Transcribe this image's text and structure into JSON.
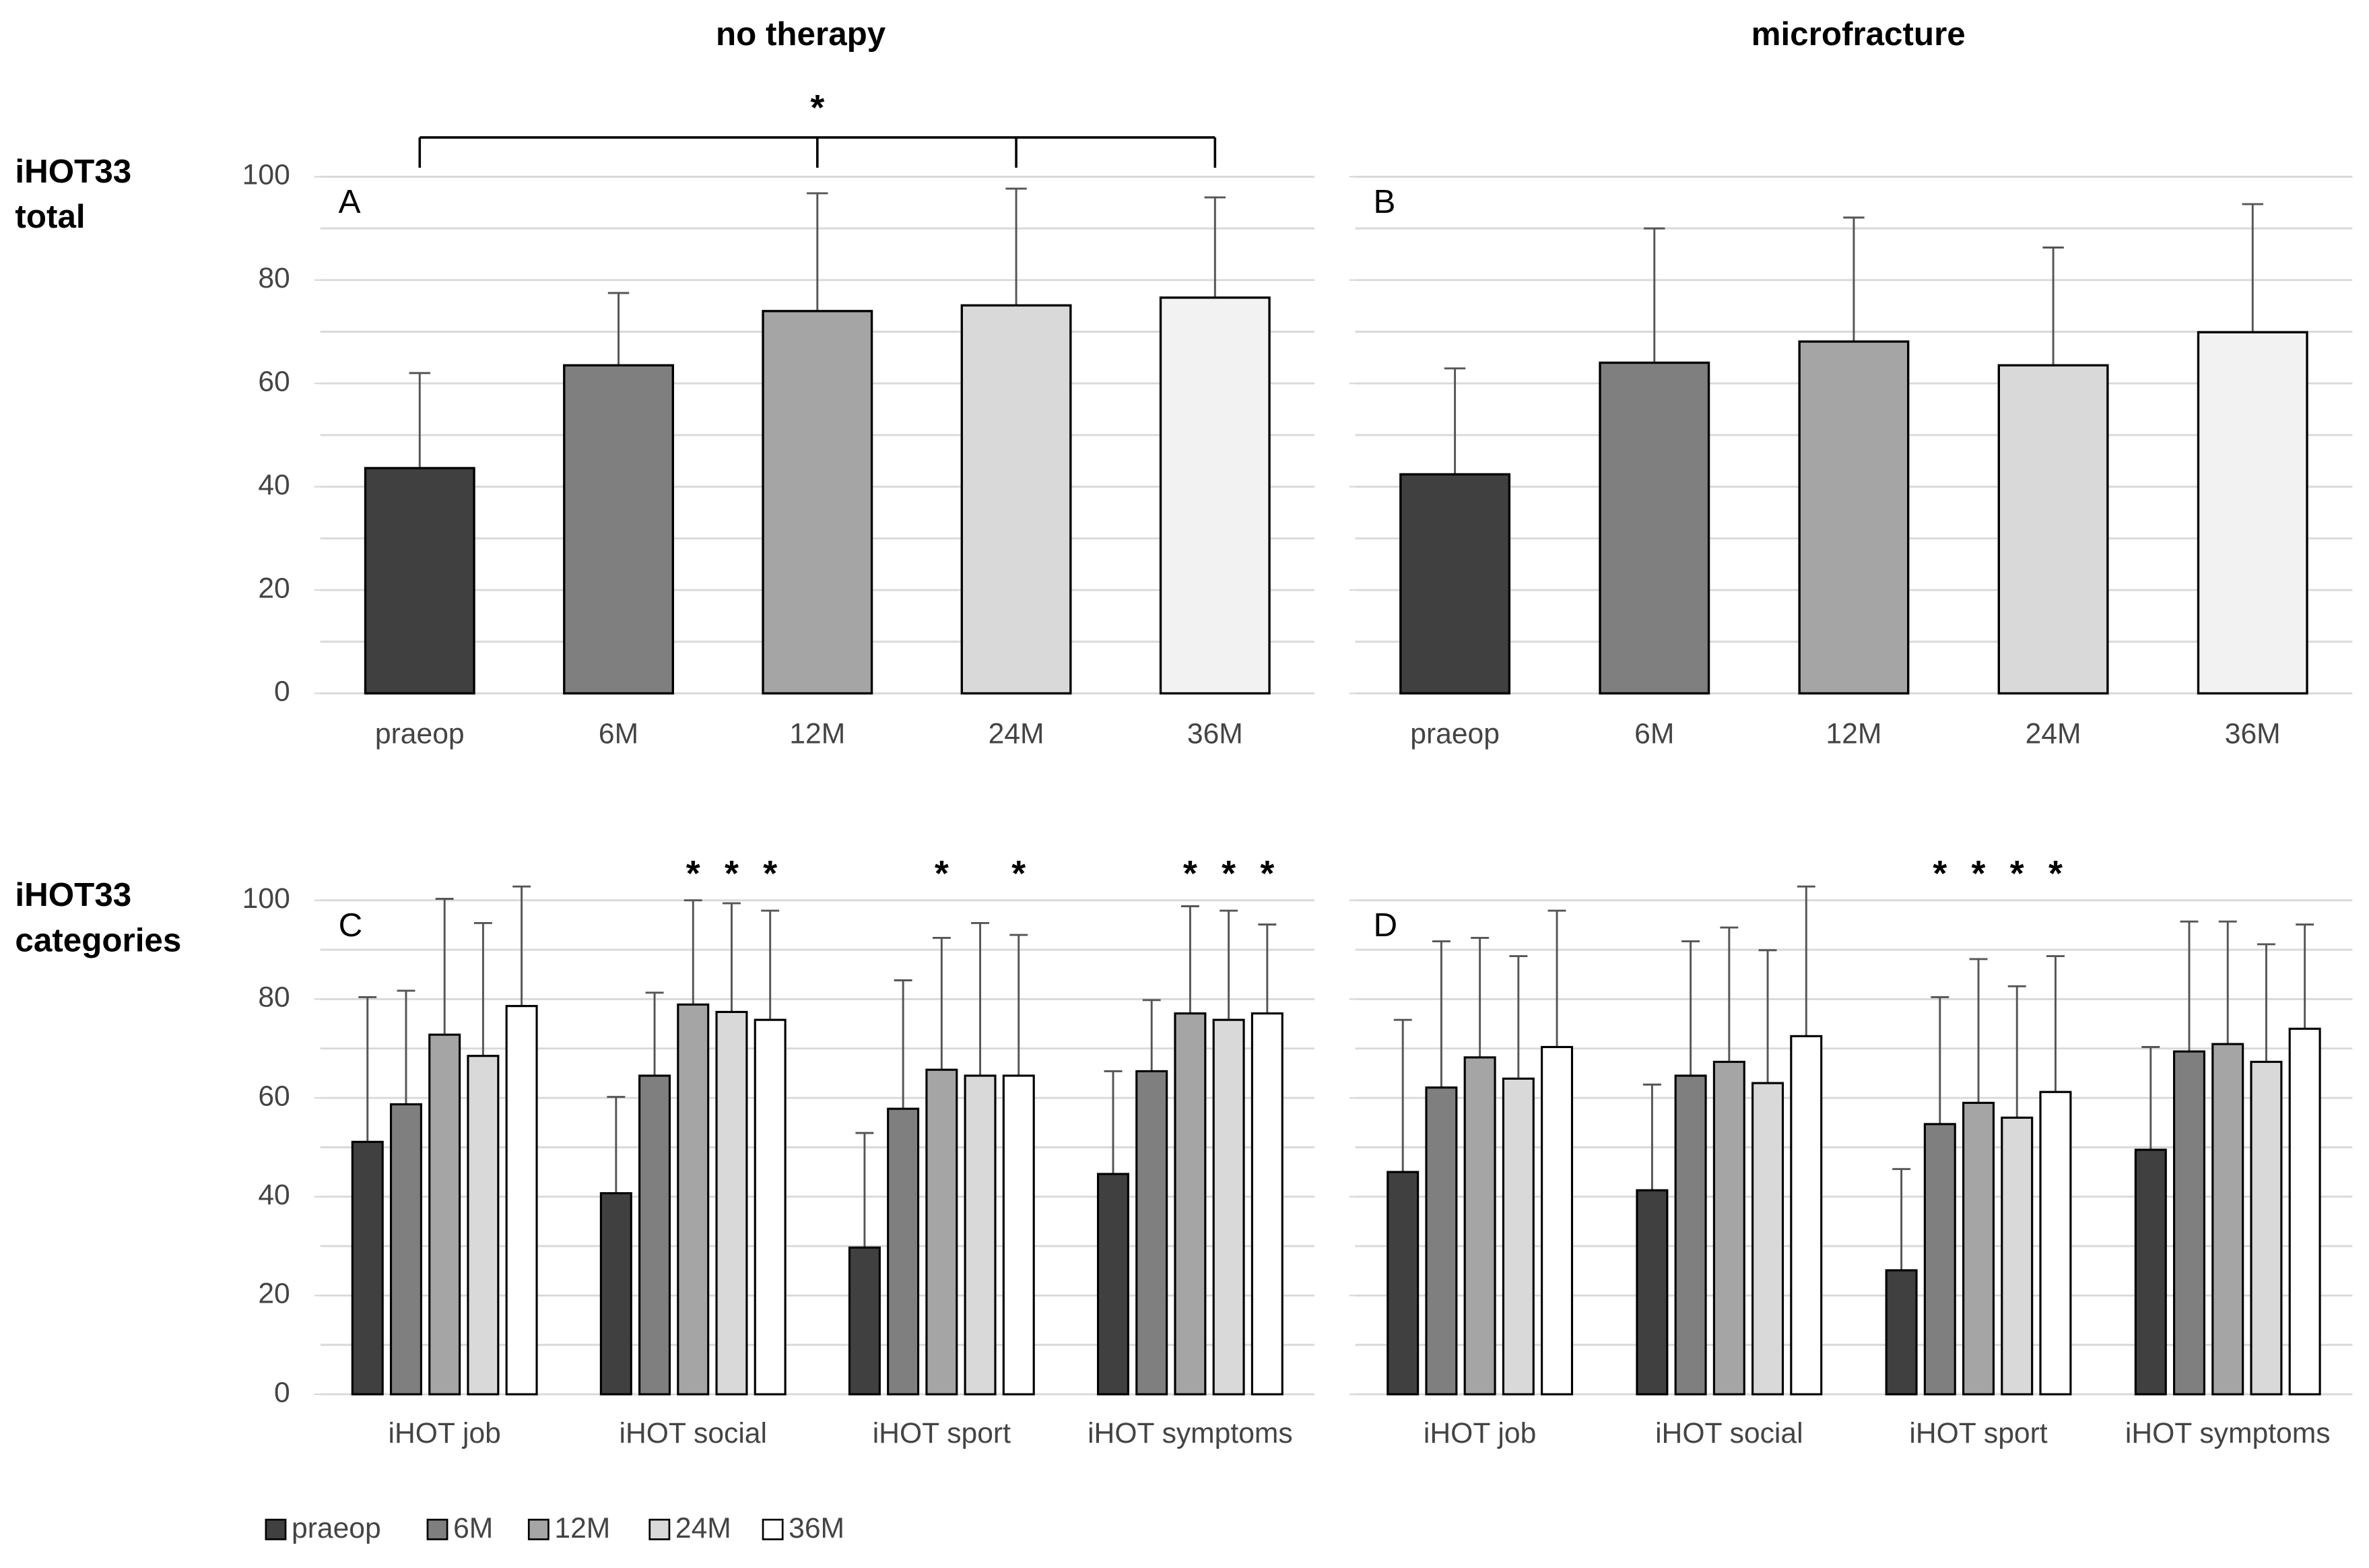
{
  "column_titles": [
    "no therapy",
    "microfracture"
  ],
  "row_titles": [
    [
      "iHOT33",
      "total"
    ],
    [
      "iHOT33",
      "categories"
    ]
  ],
  "chart_data": [
    {
      "type": "bar",
      "title": "A",
      "categories": [
        "praeop",
        "6M",
        "12M",
        "24M",
        "36M"
      ],
      "values": [
        43.6,
        63.5,
        74,
        75.1,
        76.6
      ],
      "errors": [
        18.4,
        14,
        22.8,
        22.6,
        19.4
      ],
      "colors": [
        "#404040",
        "#7f7f7f",
        "#a5a5a5",
        "#d9d9d9",
        "#f2f2f2"
      ],
      "bracket": {
        "label": "*"
      },
      "ylim": [
        0,
        100
      ],
      "yticks": [
        0,
        20,
        40,
        60,
        80,
        100
      ],
      "show_ytick_labels": true,
      "gridlines": [
        0,
        10,
        20,
        30,
        40,
        50,
        60,
        70,
        80,
        90,
        100
      ]
    },
    {
      "type": "bar",
      "title": "B",
      "categories": [
        "praeop",
        "6M",
        "12M",
        "24M",
        "36M"
      ],
      "values": [
        42.4,
        64,
        68.1,
        63.5,
        69.9
      ],
      "errors": [
        20.5,
        26,
        24,
        22.8,
        24.8
      ],
      "colors": [
        "#404040",
        "#7f7f7f",
        "#a5a5a5",
        "#d9d9d9",
        "#f2f2f2"
      ],
      "ylim": [
        0,
        100
      ],
      "yticks": [
        0,
        20,
        40,
        60,
        80,
        100
      ],
      "show_ytick_labels": false,
      "gridlines": [
        0,
        10,
        20,
        30,
        40,
        50,
        60,
        70,
        80,
        90,
        100
      ]
    },
    {
      "type": "grouped_bar",
      "title": "C",
      "categories": [
        "iHOT job",
        "iHOT social",
        "iHOT sport",
        "iHOT symptoms"
      ],
      "series": [
        {
          "name": "praeop",
          "color": "#404040",
          "values": [
            51.1,
            40.7,
            29.7,
            44.6
          ],
          "errors": [
            29.3,
            19.5,
            23.2,
            20.8
          ],
          "significance": [
            null,
            null,
            null,
            null
          ]
        },
        {
          "name": "6M",
          "color": "#7f7f7f",
          "values": [
            58.7,
            64.5,
            57.8,
            65.4
          ],
          "errors": [
            23,
            16.8,
            26,
            14.4
          ],
          "significance": [
            null,
            null,
            null,
            null
          ]
        },
        {
          "name": "12M",
          "color": "#a5a5a5",
          "values": [
            72.8,
            78.9,
            65.7,
            77.1
          ],
          "errors": [
            27.5,
            21.1,
            26.7,
            21.7
          ],
          "significance": [
            null,
            "*",
            "*",
            "*"
          ]
        },
        {
          "name": "24M",
          "color": "#d9d9d9",
          "values": [
            68.5,
            77.4,
            64.5,
            75.8
          ],
          "errors": [
            26.9,
            22,
            30.9,
            22.1
          ],
          "significance": [
            null,
            "*",
            null,
            "*"
          ]
        },
        {
          "name": "36M",
          "color": "#ffffff",
          "values": [
            78.6,
            75.8,
            64.5,
            77.1
          ],
          "errors": [
            24.2,
            22.1,
            28.5,
            18
          ],
          "significance": [
            null,
            "*",
            "*",
            "*"
          ]
        }
      ],
      "legend": "bottom-left",
      "ylim": [
        0,
        100
      ],
      "yticks": [
        0,
        20,
        40,
        60,
        80,
        100
      ],
      "show_ytick_labels": true,
      "gridlines": [
        0,
        10,
        20,
        30,
        40,
        50,
        60,
        70,
        80,
        90,
        100
      ]
    },
    {
      "type": "grouped_bar",
      "title": "D",
      "categories": [
        "iHOT job",
        "iHOT social",
        "iHOT sport",
        "iHOT symptoms"
      ],
      "series": [
        {
          "color": "#404040",
          "values": [
            45,
            41.3,
            25.1,
            49.5
          ],
          "errors": [
            30.8,
            21.4,
            20.5,
            20.8
          ],
          "significance": [
            null,
            null,
            null,
            null
          ]
        },
        {
          "color": "#7f7f7f",
          "values": [
            62.1,
            64.5,
            54.7,
            69.4
          ],
          "errors": [
            29.6,
            27.2,
            25.7,
            26.3
          ],
          "significance": [
            null,
            null,
            "*",
            null
          ]
        },
        {
          "color": "#a5a5a5",
          "values": [
            68.2,
            67.3,
            59,
            70.9
          ],
          "errors": [
            24.2,
            27.2,
            29.1,
            24.8
          ],
          "significance": [
            null,
            null,
            "*",
            null
          ]
        },
        {
          "color": "#d9d9d9",
          "values": [
            63.9,
            63,
            56,
            67.3
          ],
          "errors": [
            24.8,
            26.9,
            26.6,
            23.8
          ],
          "significance": [
            null,
            null,
            "*",
            null
          ]
        },
        {
          "color": "#ffffff",
          "values": [
            70.3,
            72.5,
            61.2,
            74
          ],
          "errors": [
            27.6,
            30.3,
            27.5,
            21.1
          ],
          "significance": [
            null,
            null,
            "*",
            null
          ]
        }
      ],
      "ylim": [
        0,
        100
      ],
      "yticks": [
        0,
        20,
        40,
        60,
        80,
        100
      ],
      "show_ytick_labels": false,
      "gridlines": [
        0,
        10,
        20,
        30,
        40,
        50,
        60,
        70,
        80,
        90,
        100
      ]
    }
  ]
}
